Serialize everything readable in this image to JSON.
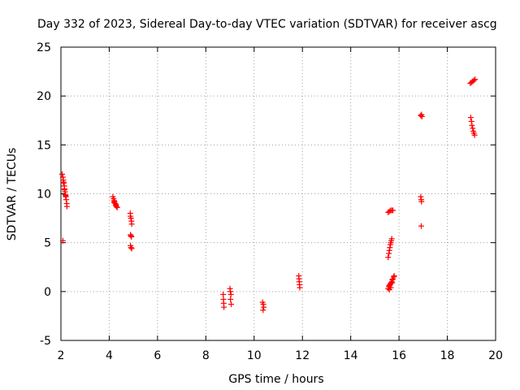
{
  "chart_data": {
    "type": "scatter",
    "title": "Day 332 of 2023, Sidereal Day-to-day VTEC variation (SDTVAR) for receiver ascg",
    "xlabel": "GPS time / hours",
    "ylabel": "SDTVAR / TECUs",
    "xlim": [
      2,
      20
    ],
    "ylim": [
      -5,
      25
    ],
    "xticks": [
      "2",
      "4",
      "6",
      "8",
      "10",
      "12",
      "14",
      "16",
      "18",
      "20"
    ],
    "yticks": [
      "-5",
      "0",
      "5",
      "10",
      "15",
      "20",
      "25"
    ],
    "grid": true,
    "marker": "+",
    "color": "#ff0000",
    "series": [
      {
        "name": "SDTVAR",
        "points": [
          [
            2.05,
            12.0
          ],
          [
            2.08,
            11.7
          ],
          [
            2.1,
            11.4
          ],
          [
            2.12,
            11.1
          ],
          [
            2.14,
            10.8
          ],
          [
            2.15,
            10.5
          ],
          [
            2.17,
            10.2
          ],
          [
            2.18,
            9.9
          ],
          [
            2.2,
            9.7
          ],
          [
            2.22,
            9.4
          ],
          [
            2.24,
            9.0
          ],
          [
            2.25,
            8.7
          ],
          [
            2.1,
            11.2
          ],
          [
            2.15,
            10.4
          ],
          [
            2.2,
            9.8
          ],
          [
            2.08,
            5.2
          ],
          [
            4.15,
            9.7
          ],
          [
            4.18,
            9.5
          ],
          [
            4.2,
            9.3
          ],
          [
            4.22,
            9.2
          ],
          [
            4.25,
            9.0
          ],
          [
            4.28,
            8.9
          ],
          [
            4.3,
            8.7
          ],
          [
            4.33,
            8.6
          ],
          [
            4.2,
            9.1
          ],
          [
            4.27,
            8.8
          ],
          [
            4.87,
            8.0
          ],
          [
            4.88,
            7.7
          ],
          [
            4.9,
            7.5
          ],
          [
            4.92,
            7.2
          ],
          [
            4.93,
            6.9
          ],
          [
            4.88,
            5.8
          ],
          [
            4.9,
            5.7
          ],
          [
            4.92,
            5.6
          ],
          [
            4.88,
            4.7
          ],
          [
            4.9,
            4.5
          ],
          [
            4.93,
            4.4
          ],
          [
            8.72,
            -0.3
          ],
          [
            8.73,
            -0.8
          ],
          [
            8.74,
            -1.2
          ],
          [
            8.75,
            -1.6
          ],
          [
            9.0,
            0.3
          ],
          [
            9.02,
            0.0
          ],
          [
            9.04,
            -0.3
          ],
          [
            9.05,
            -1.3
          ],
          [
            9.02,
            -0.8
          ],
          [
            10.35,
            -1.1
          ],
          [
            10.38,
            -1.3
          ],
          [
            10.4,
            -1.6
          ],
          [
            10.37,
            -1.9
          ],
          [
            11.85,
            1.6
          ],
          [
            11.86,
            1.3
          ],
          [
            11.87,
            1.0
          ],
          [
            11.88,
            0.7
          ],
          [
            11.89,
            0.4
          ],
          [
            15.55,
            0.3
          ],
          [
            15.58,
            0.5
          ],
          [
            15.6,
            0.6
          ],
          [
            15.62,
            0.7
          ],
          [
            15.65,
            0.8
          ],
          [
            15.68,
            0.9
          ],
          [
            15.7,
            1.0
          ],
          [
            15.72,
            1.2
          ],
          [
            15.75,
            1.3
          ],
          [
            15.78,
            1.5
          ],
          [
            15.8,
            1.6
          ],
          [
            15.6,
            0.2
          ],
          [
            15.66,
            0.4
          ],
          [
            15.72,
            0.9
          ],
          [
            15.55,
            3.5
          ],
          [
            15.58,
            3.9
          ],
          [
            15.6,
            4.2
          ],
          [
            15.62,
            4.5
          ],
          [
            15.64,
            4.8
          ],
          [
            15.66,
            5.0
          ],
          [
            15.68,
            5.2
          ],
          [
            15.7,
            5.4
          ],
          [
            15.55,
            8.1
          ],
          [
            15.6,
            8.2
          ],
          [
            15.65,
            8.3
          ],
          [
            15.7,
            8.3
          ],
          [
            15.75,
            8.3
          ],
          [
            16.9,
            9.7
          ],
          [
            16.92,
            9.4
          ],
          [
            16.93,
            9.2
          ],
          [
            16.92,
            6.7
          ],
          [
            16.9,
            18.0
          ],
          [
            16.93,
            18.1
          ],
          [
            16.95,
            17.9
          ],
          [
            18.95,
            21.3
          ],
          [
            19.0,
            21.4
          ],
          [
            19.05,
            21.5
          ],
          [
            19.1,
            21.6
          ],
          [
            19.15,
            21.7
          ],
          [
            18.97,
            17.8
          ],
          [
            19.0,
            17.4
          ],
          [
            19.02,
            17.0
          ],
          [
            19.05,
            16.7
          ],
          [
            19.08,
            16.4
          ],
          [
            19.1,
            16.2
          ],
          [
            19.13,
            16.0
          ]
        ]
      }
    ]
  }
}
